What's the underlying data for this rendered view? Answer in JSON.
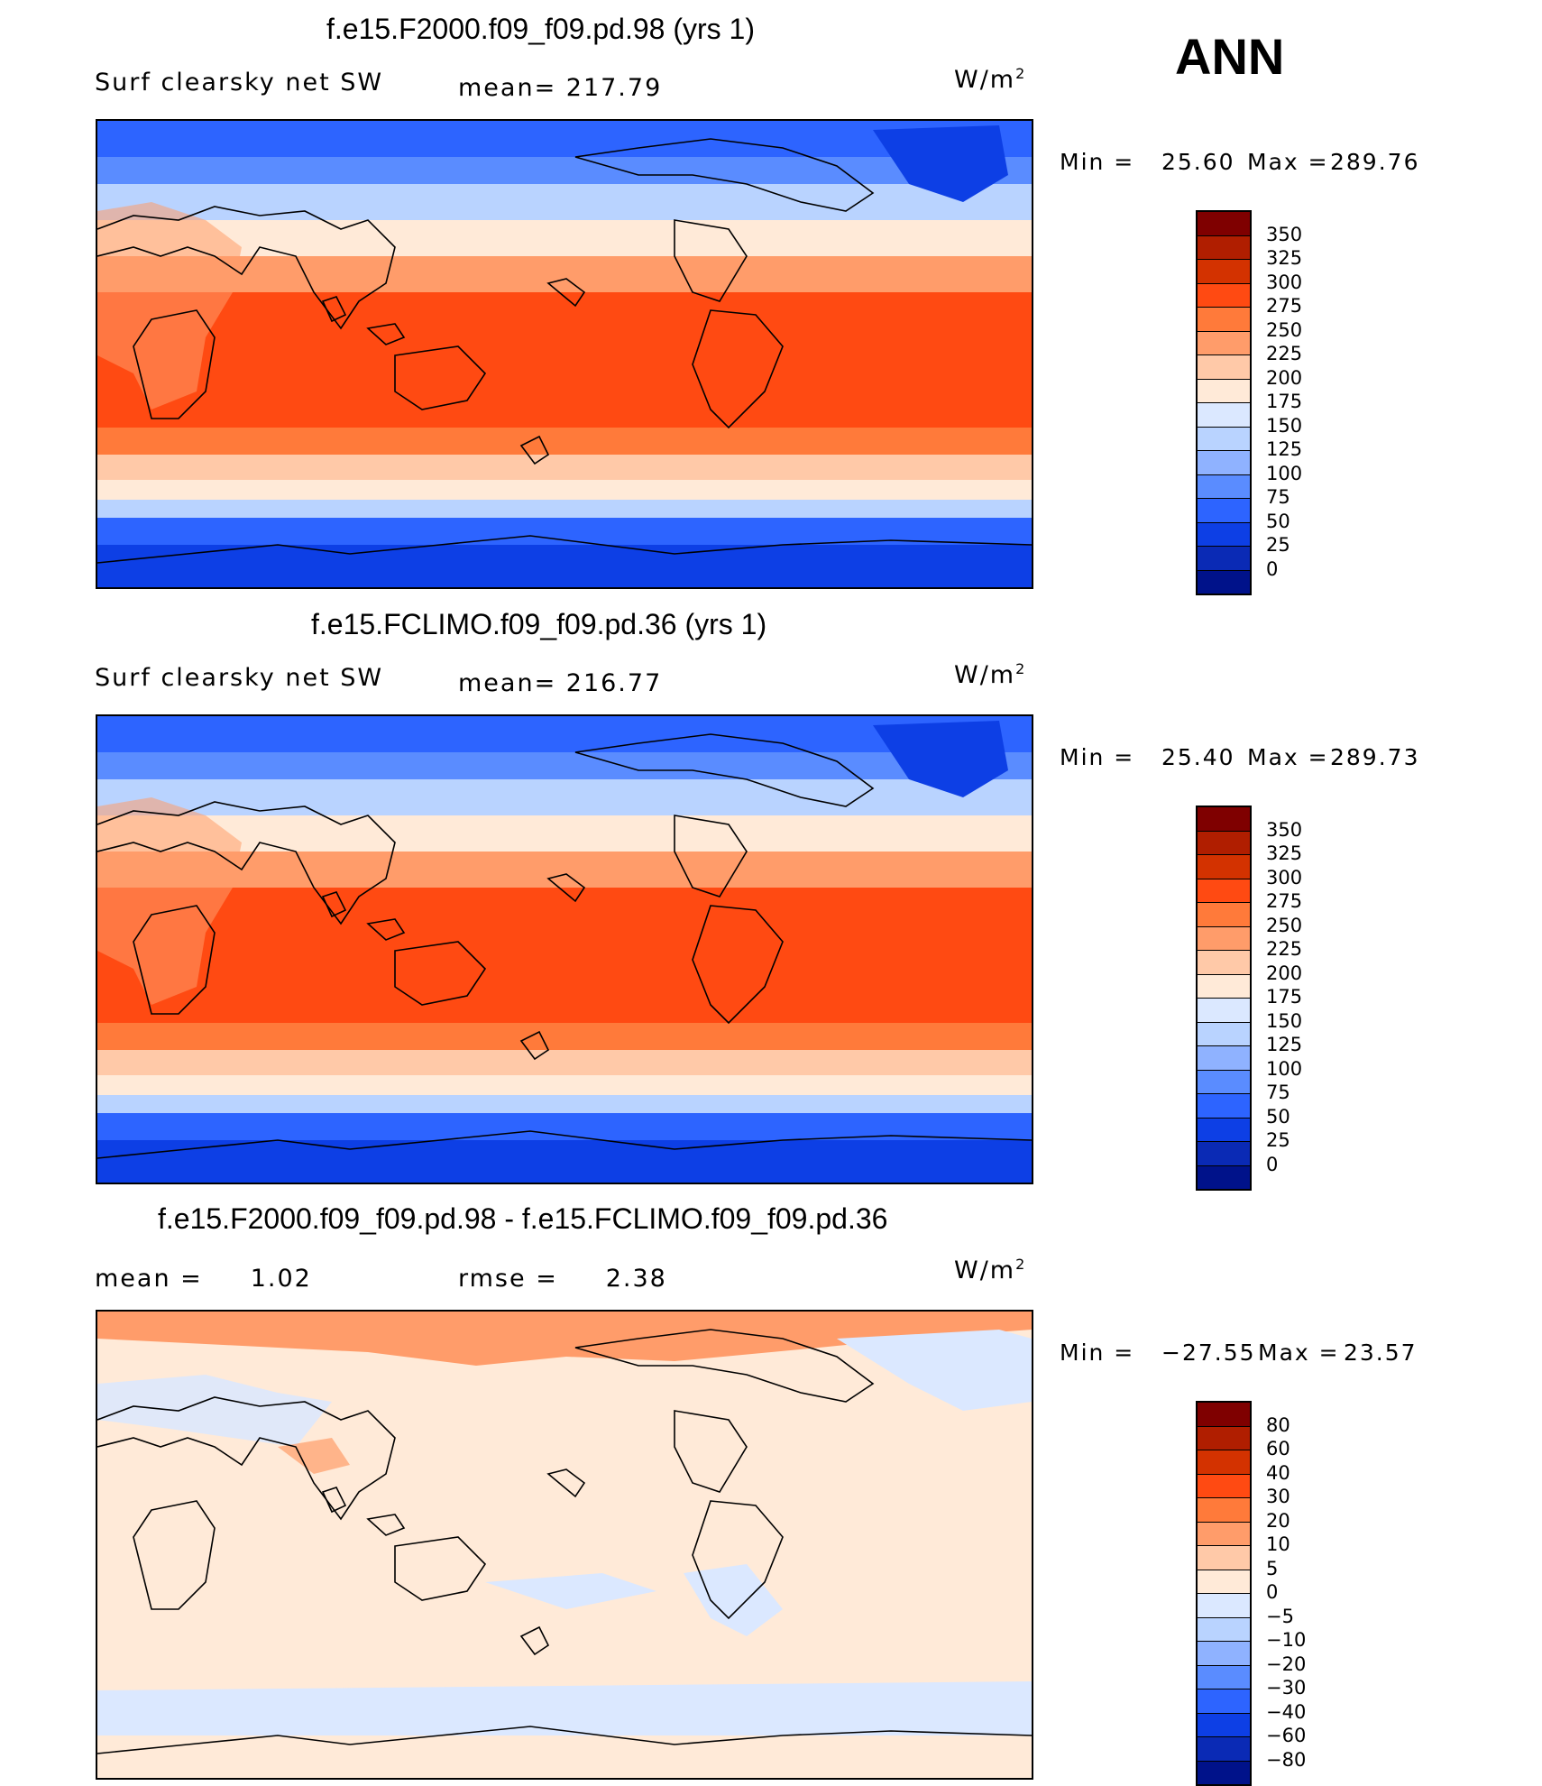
{
  "season": "ANN",
  "units_main": "W/m",
  "units_sup": "2",
  "panels": [
    {
      "title": "f.e15.F2000.f09_f09.pd.98 (yrs 1)",
      "left_text": "Surf clearsky net SW",
      "center_text": "mean= 217.79",
      "min_label": "Min =",
      "min_value": "25.60",
      "max_label": "Max =",
      "max_value": "289.76",
      "map_name": "map-panel-1"
    },
    {
      "title": "f.e15.FCLIMO.f09_f09.pd.36 (yrs 1)",
      "left_text": "Surf clearsky net SW",
      "center_text": "mean= 216.77",
      "min_label": "Min =",
      "min_value": "25.40",
      "max_label": "Max =",
      "max_value": "289.73",
      "map_name": "map-panel-2"
    },
    {
      "title": "f.e15.F2000.f09_f09.pd.98 - f.e15.FCLIMO.f09_f09.pd.36",
      "left_text": "mean =     1.02",
      "center_text": "rmse =     2.38",
      "min_label": "Min =",
      "min_value": "−27.55",
      "max_label": "Max =",
      "max_value": "23.57",
      "map_name": "map-panel-diff"
    }
  ],
  "colorbars": {
    "abs_labels": [
      "350",
      "325",
      "300",
      "275",
      "250",
      "225",
      "200",
      "175",
      "150",
      "125",
      "100",
      "75",
      "50",
      "25",
      "0"
    ],
    "abs_colors": [
      "#7f0000",
      "#b01e00",
      "#d33200",
      "#ff4a12",
      "#ff7a3a",
      "#ff9c6a",
      "#ffc9a8",
      "#ffead8",
      "#dbe8ff",
      "#b9d3ff",
      "#8fb2ff",
      "#5a8cff",
      "#2d64ff",
      "#0d3fe5",
      "#0a2ab5",
      "#00128a"
    ],
    "diff_labels": [
      "80",
      "60",
      "40",
      "30",
      "20",
      "10",
      "5",
      "0",
      "−5",
      "−10",
      "−20",
      "−30",
      "−40",
      "−60",
      "−80"
    ],
    "diff_colors": [
      "#7f0000",
      "#b01e00",
      "#d33200",
      "#ff4a12",
      "#ff7a3a",
      "#ff9c6a",
      "#ffc9a8",
      "#ffead8",
      "#dbe8ff",
      "#b9d3ff",
      "#8fb2ff",
      "#5a8cff",
      "#2d64ff",
      "#0d3fe5",
      "#0a2ab5",
      "#00128a"
    ]
  }
}
